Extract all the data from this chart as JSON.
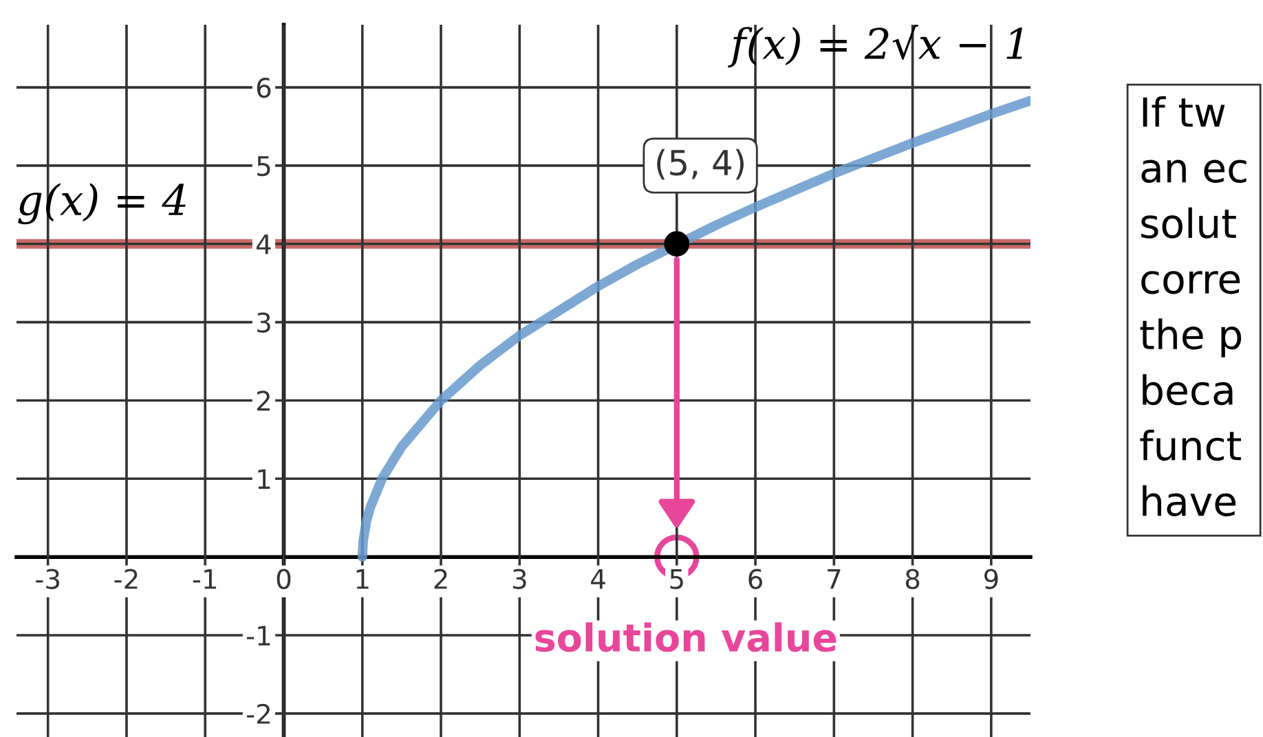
{
  "chart_data": {
    "type": "line",
    "xlim": [
      -3.4,
      9.5
    ],
    "ylim": [
      -2.3,
      6.8
    ],
    "xticks": [
      -3,
      -2,
      -1,
      0,
      1,
      2,
      3,
      4,
      5,
      6,
      7,
      8,
      9
    ],
    "yticks": [
      -2,
      -1,
      1,
      2,
      3,
      4,
      5,
      6
    ],
    "grid": true,
    "series": [
      {
        "name": "f(x) = 2√x − 1",
        "color": "#6699cc",
        "x": [
          1,
          1.01,
          1.05,
          1.1,
          1.25,
          1.5,
          2,
          2.5,
          3,
          4,
          4.5,
          5.5,
          6,
          7,
          8,
          9,
          9.5
        ],
        "values": [
          0,
          0.2,
          0.45,
          0.63,
          1,
          1.41,
          2,
          2.45,
          2.83,
          3.46,
          3.74,
          4.24,
          4.47,
          4.9,
          5.29,
          5.66,
          5.83
        ]
      },
      {
        "name": "g(x) = 4",
        "color": "#c0504d",
        "x": [
          -3.4,
          9.5
        ],
        "values": [
          4,
          4
        ]
      },
      {
        "type": "scatter",
        "color": "#000000",
        "marker": "circle",
        "x": [
          5
        ],
        "values": [
          4
        ],
        "value_labels": [
          "(5, 4)"
        ]
      }
    ],
    "annotations": [
      "solution value",
      "If tw\nan ec\nsolut\ncorre\nthe p\nbeca\nfunct\nhave"
    ]
  }
}
